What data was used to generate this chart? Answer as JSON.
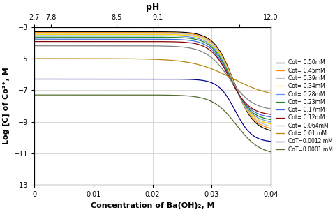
{
  "title_top": "pH",
  "xlabel": "Concentration of Ba(OH)₂, M",
  "ylabel": "Log [C] of Co²⁺, M",
  "xlim": [
    0,
    0.04
  ],
  "ylim": [
    -13,
    -3
  ],
  "yticks": [
    -13,
    -11,
    -9,
    -7,
    -5,
    -3
  ],
  "series": [
    {
      "label": "Cot= 0.50mM",
      "color": "#000000",
      "flat_level": -3.3,
      "final_log": -9.7,
      "inflection": 0.0338,
      "steepness": 600
    },
    {
      "label": "Cot= 0.45mM",
      "color": "#FF8C00",
      "flat_level": -3.35,
      "final_log": -9.55,
      "inflection": 0.0337,
      "steepness": 600
    },
    {
      "label": "Cot= 0.39mM",
      "color": "#C0C0C0",
      "flat_level": -3.41,
      "final_log": -9.4,
      "inflection": 0.0336,
      "steepness": 600
    },
    {
      "label": "Cot= 0.34mM",
      "color": "#FFD700",
      "flat_level": -3.47,
      "final_log": -9.25,
      "inflection": 0.0335,
      "steepness": 600
    },
    {
      "label": "Cot= 0.28mM",
      "color": "#6495ED",
      "flat_level": -3.55,
      "final_log": -9.1,
      "inflection": 0.0334,
      "steepness": 600
    },
    {
      "label": "Cot= 0.23mM",
      "color": "#228B22",
      "flat_level": -3.64,
      "final_log": -8.95,
      "inflection": 0.0333,
      "steepness": 600
    },
    {
      "label": "Cot= 0.17mM",
      "color": "#4169E1",
      "flat_level": -3.77,
      "final_log": -8.78,
      "inflection": 0.0332,
      "steepness": 600
    },
    {
      "label": "Cot= 0.12mM",
      "color": "#8B0000",
      "flat_level": -3.92,
      "final_log": -8.6,
      "inflection": 0.0331,
      "steepness": 600
    },
    {
      "label": "Cot= 0.064mM",
      "color": "#808080",
      "flat_level": -4.19,
      "final_log": -8.3,
      "inflection": 0.033,
      "steepness": 500
    },
    {
      "label": "Cot= 0.01 mM",
      "color": "#B8860B",
      "flat_level": -5.0,
      "final_log": -7.5,
      "inflection": 0.0335,
      "steepness": 300
    },
    {
      "label": "CoT=0.0012 mM",
      "color": "#00008B",
      "flat_level": -6.3,
      "final_log": -10.3,
      "inflection": 0.034,
      "steepness": 700
    },
    {
      "label": "CoT=0.0001 mM",
      "color": "#556B2F",
      "flat_level": -7.3,
      "final_log": -11.1,
      "inflection": 0.0342,
      "steepness": 500
    }
  ],
  "pH_positions": [
    0.0,
    0.00278,
    0.01389,
    0.02083,
    0.03472,
    0.04
  ],
  "pH_labels": [
    "2.7",
    "7.8",
    "8.5",
    "9.1",
    "",
    "12.0"
  ],
  "grid_color": "#C8C8C8"
}
